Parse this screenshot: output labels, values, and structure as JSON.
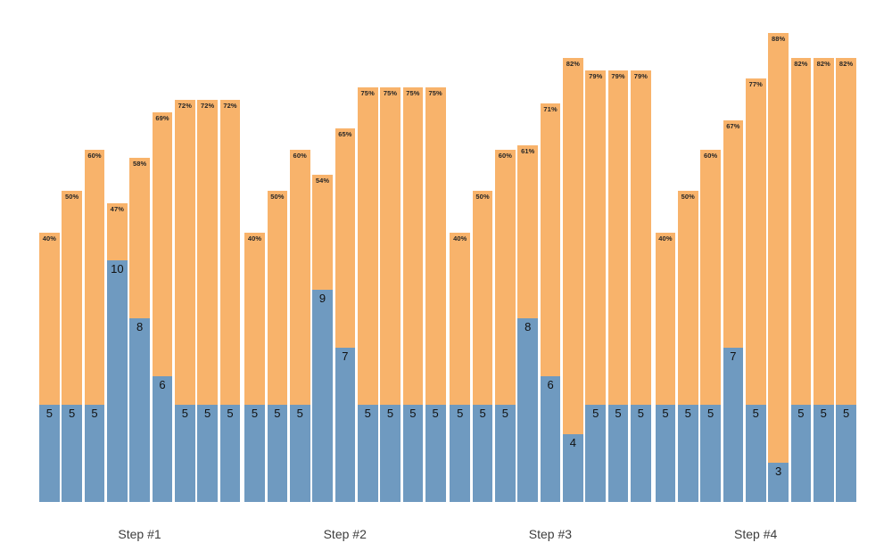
{
  "colors": {
    "bar_bottom_blue": "#6f9ac0",
    "bar_top_orange": "#f8b36b",
    "percent_label": "#262626",
    "value_label": "#111111",
    "step_label": "#3d3d3d",
    "background": "#ffffff"
  },
  "chart_data": {
    "type": "bar",
    "stacked": true,
    "orientation": "vertical",
    "gridlines": false,
    "legend": "none",
    "axes_visible": false,
    "series_names": [
      "bottom segment value (blue)",
      "top segment percent (orange)"
    ],
    "note": "Each group has 9 stacked bars; blue segment labeled with its value, orange segment labeled with a percentage at its top. Common baseline, no axes.",
    "groups": [
      {
        "label": "Step #1",
        "bars": [
          {
            "value": 5,
            "pct": 40,
            "pct_label": "40%"
          },
          {
            "value": 5,
            "pct": 50,
            "pct_label": "50%"
          },
          {
            "value": 5,
            "pct": 60,
            "pct_label": "60%"
          },
          {
            "value": 10,
            "pct": 47,
            "pct_label": "47%"
          },
          {
            "value": 8,
            "pct": 58,
            "pct_label": "58%"
          },
          {
            "value": 6,
            "pct": 69,
            "pct_label": "69%"
          },
          {
            "value": 5,
            "pct": 72,
            "pct_label": "72%"
          },
          {
            "value": 5,
            "pct": 72,
            "pct_label": "72%"
          },
          {
            "value": 5,
            "pct": 72,
            "pct_label": "72%"
          }
        ]
      },
      {
        "label": "Step #2",
        "bars": [
          {
            "value": 5,
            "pct": 40,
            "pct_label": "40%"
          },
          {
            "value": 5,
            "pct": 50,
            "pct_label": "50%"
          },
          {
            "value": 5,
            "pct": 60,
            "pct_label": "60%"
          },
          {
            "value": 9,
            "pct": 54,
            "pct_label": "54%"
          },
          {
            "value": 7,
            "pct": 65,
            "pct_label": "65%"
          },
          {
            "value": 5,
            "pct": 75,
            "pct_label": "75%"
          },
          {
            "value": 5,
            "pct": 75,
            "pct_label": "75%"
          },
          {
            "value": 5,
            "pct": 75,
            "pct_label": "75%"
          },
          {
            "value": 5,
            "pct": 75,
            "pct_label": "75%"
          }
        ]
      },
      {
        "label": "Step #3",
        "bars": [
          {
            "value": 5,
            "pct": 40,
            "pct_label": "40%"
          },
          {
            "value": 5,
            "pct": 50,
            "pct_label": "50%"
          },
          {
            "value": 5,
            "pct": 60,
            "pct_label": "60%"
          },
          {
            "value": 8,
            "pct": 61,
            "pct_label": "61%"
          },
          {
            "value": 6,
            "pct": 71,
            "pct_label": "71%"
          },
          {
            "value": 4,
            "pct": 82,
            "pct_label": "82%"
          },
          {
            "value": 5,
            "pct": 79,
            "pct_label": "79%"
          },
          {
            "value": 5,
            "pct": 79,
            "pct_label": "79%"
          },
          {
            "value": 5,
            "pct": 79,
            "pct_label": "79%"
          }
        ]
      },
      {
        "label": "Step #4",
        "bars": [
          {
            "value": 5,
            "pct": 40,
            "pct_label": "40%"
          },
          {
            "value": 5,
            "pct": 50,
            "pct_label": "50%"
          },
          {
            "value": 5,
            "pct": 60,
            "pct_label": "60%"
          },
          {
            "value": 7,
            "pct": 67,
            "pct_label": "67%"
          },
          {
            "value": 5,
            "pct": 77,
            "pct_label": "77%"
          },
          {
            "value": 3,
            "pct": 88,
            "pct_label": "88%"
          },
          {
            "value": 5,
            "pct": 82,
            "pct_label": "82%"
          },
          {
            "value": 5,
            "pct": 82,
            "pct_label": "82%"
          },
          {
            "value": 5,
            "pct": 82,
            "pct_label": "82%"
          }
        ]
      }
    ]
  }
}
